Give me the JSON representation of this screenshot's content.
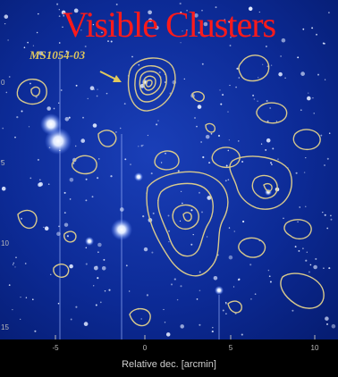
{
  "title": "Visible Clusters",
  "annotation": {
    "label": "MS1054-03"
  },
  "axis": {
    "xlabel": "Relative dec. [arcmin]",
    "xticks": [
      "-5",
      "0",
      "5",
      "10"
    ],
    "yticks": [
      "0",
      "5",
      "10",
      "15"
    ]
  },
  "colors": {
    "sky_dark": "#061d73",
    "sky_light": "#1a3fb8",
    "contour": "#d8c98c",
    "title": "#ff1a1a",
    "label": "#e0c85c"
  },
  "icons": {
    "pointer": "arrow-icon"
  }
}
